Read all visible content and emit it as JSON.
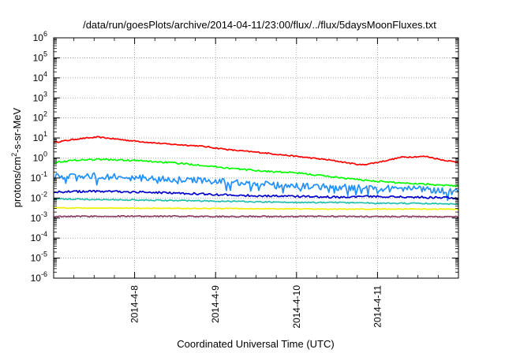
{
  "chart_data": {
    "type": "line",
    "title": "/data/run/goesPlots/archive/2014-04-11/23:00/flux/../flux/5daysMoonFluxes.txt",
    "xlabel": "Coordinated Universal Time (UTC)",
    "ylabel": "protons/cm²-s-sr-MeV",
    "y_scale": "log",
    "ylim_exp": [
      -6,
      6
    ],
    "y_tick_labels": [
      "10-6",
      "10-5",
      "10-4",
      "10-3",
      "10-2",
      "10-1",
      "100",
      "101",
      "102",
      "103",
      "104",
      "105",
      "106"
    ],
    "xlim_days": [
      7.0,
      12.0
    ],
    "x_ticks": [
      {
        "label": "2014-4-8",
        "day": 8
      },
      {
        "label": "2014-4-9",
        "day": 9
      },
      {
        "label": "2014-4-10",
        "day": 10
      },
      {
        "label": "2014-4-11",
        "day": 11
      }
    ],
    "grid": true,
    "legend": "none",
    "series": [
      {
        "color": "#ff0000",
        "noise": 0.03,
        "keypoints": [
          [
            7.0,
            6
          ],
          [
            7.3,
            9
          ],
          [
            7.55,
            11
          ],
          [
            7.75,
            9
          ],
          [
            8.0,
            7
          ],
          [
            8.4,
            5
          ],
          [
            8.8,
            4
          ],
          [
            9.2,
            2.5
          ],
          [
            9.6,
            1.8
          ],
          [
            10.0,
            1.2
          ],
          [
            10.4,
            0.8
          ],
          [
            10.8,
            0.45
          ],
          [
            11.0,
            0.6
          ],
          [
            11.3,
            1.1
          ],
          [
            11.6,
            1.2
          ],
          [
            11.8,
            0.8
          ],
          [
            12.0,
            0.6
          ]
        ]
      },
      {
        "color": "#00ff00",
        "noise": 0.04,
        "keypoints": [
          [
            7.0,
            0.6
          ],
          [
            7.3,
            0.8
          ],
          [
            7.6,
            0.85
          ],
          [
            8.0,
            0.75
          ],
          [
            8.4,
            0.6
          ],
          [
            8.8,
            0.45
          ],
          [
            9.2,
            0.3
          ],
          [
            9.6,
            0.22
          ],
          [
            10.0,
            0.18
          ],
          [
            10.4,
            0.12
          ],
          [
            10.8,
            0.08
          ],
          [
            11.2,
            0.06
          ],
          [
            11.6,
            0.05
          ],
          [
            12.0,
            0.04
          ]
        ]
      },
      {
        "color": "#1e90ff",
        "noise": 0.16,
        "keypoints": [
          [
            7.0,
            0.12
          ],
          [
            7.5,
            0.13
          ],
          [
            8.0,
            0.1
          ],
          [
            8.5,
            0.09
          ],
          [
            9.0,
            0.07
          ],
          [
            9.5,
            0.05
          ],
          [
            10.0,
            0.04
          ],
          [
            10.5,
            0.035
          ],
          [
            11.0,
            0.03
          ],
          [
            11.5,
            0.03
          ],
          [
            12.0,
            0.02
          ]
        ]
      },
      {
        "color": "#0000cd",
        "noise": 0.05,
        "keypoints": [
          [
            7.0,
            0.02
          ],
          [
            7.5,
            0.022
          ],
          [
            8.0,
            0.02
          ],
          [
            8.5,
            0.018
          ],
          [
            9.0,
            0.015
          ],
          [
            9.5,
            0.013
          ],
          [
            10.0,
            0.012
          ],
          [
            10.5,
            0.011
          ],
          [
            11.0,
            0.012
          ],
          [
            11.5,
            0.011
          ],
          [
            12.0,
            0.01
          ]
        ]
      },
      {
        "color": "#20c0b0",
        "noise": 0.03,
        "keypoints": [
          [
            7.0,
            0.009
          ],
          [
            7.5,
            0.0085
          ],
          [
            8.0,
            0.008
          ],
          [
            8.5,
            0.0075
          ],
          [
            9.0,
            0.007
          ],
          [
            9.5,
            0.0065
          ],
          [
            10.0,
            0.006
          ],
          [
            10.5,
            0.006
          ],
          [
            11.0,
            0.0055
          ],
          [
            11.5,
            0.0055
          ],
          [
            12.0,
            0.005
          ]
        ]
      },
      {
        "color": "#f0f000",
        "noise": 0.02,
        "keypoints": [
          [
            7.0,
            0.0032
          ],
          [
            8.0,
            0.0031
          ],
          [
            9.0,
            0.003
          ],
          [
            10.0,
            0.0029
          ],
          [
            10.5,
            0.0028
          ],
          [
            11.0,
            0.0028
          ],
          [
            12.0,
            0.0028
          ]
        ]
      },
      {
        "color": "#8b3a62",
        "noise": 0.03,
        "keypoints": [
          [
            7.0,
            0.0012
          ],
          [
            8.0,
            0.00125
          ],
          [
            9.0,
            0.0012
          ],
          [
            10.0,
            0.0012
          ],
          [
            11.0,
            0.0012
          ],
          [
            12.0,
            0.00115
          ]
        ]
      }
    ]
  }
}
